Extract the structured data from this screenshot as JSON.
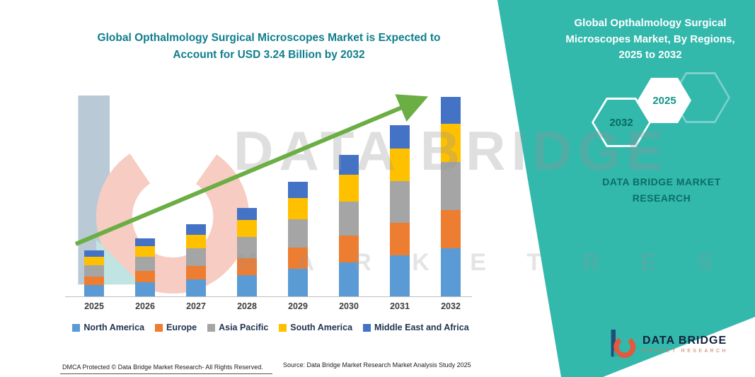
{
  "header": {
    "title_line1": "Global Opthalmology Surgical Microscopes Market is Expected to",
    "title_line2": "Account for USD 3.24 Billion by 2032"
  },
  "side_panel": {
    "heading": "Global Opthalmology Surgical Microscopes Market, By Regions, 2025 to 2032",
    "hexagon_left": "2032",
    "hexagon_right": "2025",
    "brand_line1": "DATA BRIDGE MARKET",
    "brand_line2": "RESEARCH",
    "bg_color": "#33B8AC"
  },
  "watermark": {
    "text1": "DATA BRIDGE",
    "text2": "M A R K E T   R E S E A R C H",
    "logo": "data-bridge-b-logo"
  },
  "chart_data": {
    "type": "bar",
    "stacked": true,
    "title": "Global Opthalmology Surgical Microscopes Market is Expected to Account for USD 3.24 Billion by 2032",
    "unit": "USD Billion",
    "categories": [
      "2025",
      "2026",
      "2027",
      "2028",
      "2029",
      "2030",
      "2031",
      "2032"
    ],
    "series": [
      {
        "name": "North America",
        "color": "#5B9BD5",
        "values": [
          0.18,
          0.23,
          0.28,
          0.35,
          0.45,
          0.55,
          0.67,
          0.78
        ]
      },
      {
        "name": "Europe",
        "color": "#ED7D31",
        "values": [
          0.14,
          0.18,
          0.22,
          0.27,
          0.35,
          0.44,
          0.53,
          0.62
        ]
      },
      {
        "name": "Asia Pacific",
        "color": "#A5A5A5",
        "values": [
          0.18,
          0.23,
          0.28,
          0.35,
          0.45,
          0.55,
          0.67,
          0.78
        ]
      },
      {
        "name": "South America",
        "color": "#FFC000",
        "values": [
          0.14,
          0.18,
          0.22,
          0.27,
          0.35,
          0.44,
          0.53,
          0.62
        ]
      },
      {
        "name": "Middle East and Africa",
        "color": "#4472C4",
        "values": [
          0.11,
          0.12,
          0.17,
          0.2,
          0.26,
          0.32,
          0.38,
          0.44
        ]
      }
    ],
    "totals": [
      0.75,
      0.94,
      1.17,
      1.44,
      1.86,
      2.3,
      2.78,
      3.24
    ],
    "ylim": [
      0,
      3.5
    ],
    "grid": false,
    "legend_position": "bottom",
    "trend_arrow": true,
    "trend_arrow_color": "#6BAE44"
  },
  "footer": {
    "dmca": "DMCA Protected © Data Bridge Market Research-  All Rights Reserved.",
    "source": "Source: Data Bridge Market Research  Market Analysis Study 2025",
    "logo_title": "DATA BRIDGE",
    "logo_subtitle": "MARKET RESEARCH"
  }
}
